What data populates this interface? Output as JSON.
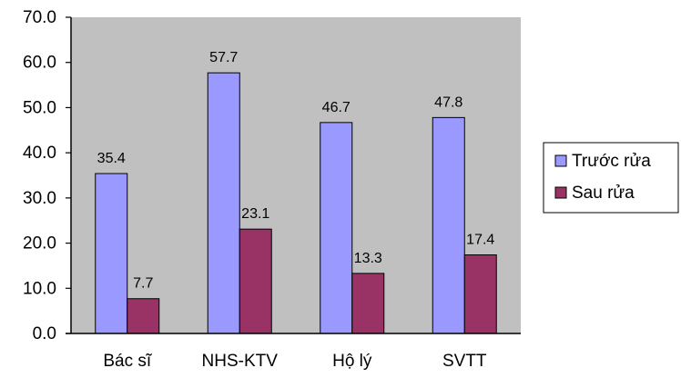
{
  "chart_data": {
    "type": "bar",
    "categories": [
      "Bác sĩ",
      "NHS-KTV",
      "Hộ lý",
      "SVTT"
    ],
    "series": [
      {
        "name": "Trước rửa",
        "values": [
          35.4,
          57.7,
          46.7,
          47.8
        ],
        "color": "#9999ff"
      },
      {
        "name": "Sau rửa",
        "values": [
          7.7,
          23.1,
          13.3,
          17.4
        ],
        "color": "#993366"
      }
    ],
    "data_labels": [
      [
        "35.4",
        "57.7",
        "46.7",
        "47.8"
      ],
      [
        "7.7",
        "23.1",
        "13.3",
        "17.4"
      ]
    ],
    "yticks": [
      "0.0",
      "10.0",
      "20.0",
      "30.0",
      "40.0",
      "50.0",
      "60.0",
      "70.0"
    ],
    "ylim": [
      0,
      70
    ],
    "grid": false,
    "legend": "right",
    "plot_background": "#c0c0c0"
  }
}
